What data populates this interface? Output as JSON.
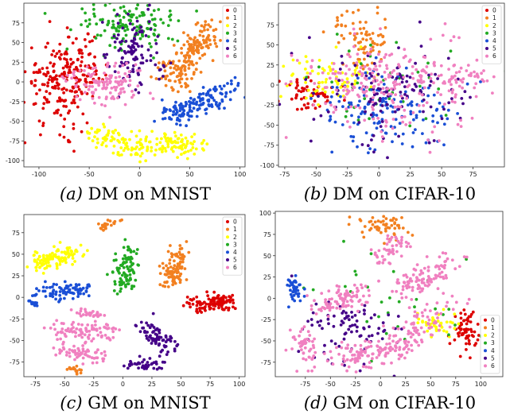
{
  "class_colors": [
    "#dd0000",
    "#f28020",
    "#ffff00",
    "#22aa22",
    "#1a4fd6",
    "#440088",
    "#f080c0"
  ],
  "chart_data": [
    {
      "type": "scatter",
      "caption_label": "(a)",
      "caption_text": "DM on MNIST",
      "xlim": [
        -115,
        105
      ],
      "ylim": [
        -108,
        100
      ],
      "xticks": [
        -100,
        -50,
        0,
        50,
        100
      ],
      "yticks": [
        -100,
        -75,
        -50,
        -25,
        0,
        25,
        50,
        75
      ],
      "legend": {
        "position": "top-right",
        "labels": [
          "0",
          "1",
          "2",
          "3",
          "4",
          "5",
          "6"
        ]
      },
      "grid": false,
      "clusters": [
        {
          "cls": 0,
          "x": -80,
          "y": 0,
          "sx": 17,
          "sy": 28,
          "n": 170
        },
        {
          "cls": 0,
          "x": -55,
          "y": 10,
          "sx": 10,
          "sy": 20,
          "n": 60
        },
        {
          "cls": 1,
          "x": 30,
          "y": 0,
          "x2": 70,
          "y2": 65,
          "spread": 9,
          "n": 190
        },
        {
          "cls": 2,
          "x": -10,
          "y": -80,
          "x2": 60,
          "y2": -80,
          "spread": 9,
          "n": 120
        },
        {
          "cls": 2,
          "x": -50,
          "y": -60,
          "x2": -10,
          "y2": -80,
          "spread": 8,
          "n": 60
        },
        {
          "cls": 3,
          "x": -10,
          "y": 75,
          "sx": 25,
          "sy": 14,
          "n": 140
        },
        {
          "cls": 4,
          "x": 30,
          "y": -45,
          "x2": 95,
          "y2": -5,
          "spread": 8,
          "n": 150
        },
        {
          "cls": 5,
          "x": -5,
          "y": 35,
          "sx": 14,
          "sy": 24,
          "n": 110
        },
        {
          "cls": 6,
          "x": -35,
          "y": 0,
          "sx": 20,
          "sy": 14,
          "n": 120
        }
      ]
    },
    {
      "type": "scatter",
      "caption_label": "(b)",
      "caption_text": "DM on CIFAR-10",
      "xlim": [
        -80,
        100
      ],
      "ylim": [
        -102,
        102
      ],
      "xticks": [
        -75,
        -50,
        -25,
        0,
        25,
        50,
        75
      ],
      "yticks": [
        -100,
        -75,
        -50,
        -25,
        0,
        25,
        50,
        75
      ],
      "legend": {
        "position": "top-right",
        "labels": [
          "0",
          "1",
          "2",
          "3",
          "4",
          "5",
          "6"
        ]
      },
      "grid": false,
      "clusters": [
        {
          "cls": 0,
          "x": -55,
          "y": -10,
          "sx": 10,
          "sy": 12,
          "n": 60
        },
        {
          "cls": 1,
          "x": -15,
          "y": 60,
          "sx": 12,
          "sy": 20,
          "n": 80
        },
        {
          "cls": 2,
          "x": -40,
          "y": 10,
          "sx": 18,
          "sy": 15,
          "n": 70
        },
        {
          "cls": 3,
          "x": 0,
          "y": 0,
          "sx": 30,
          "sy": 30,
          "n": 40
        },
        {
          "cls": 4,
          "x": 10,
          "y": -35,
          "sx": 26,
          "sy": 25,
          "n": 150
        },
        {
          "cls": 5,
          "x": 5,
          "y": -10,
          "sx": 30,
          "sy": 28,
          "n": 120
        },
        {
          "cls": 6,
          "x": 5,
          "y": 0,
          "sx": 35,
          "sy": 30,
          "n": 230
        },
        {
          "cls": 6,
          "x": 60,
          "y": 10,
          "sx": 15,
          "sy": 8,
          "n": 50
        }
      ]
    },
    {
      "type": "scatter",
      "caption_label": "(c)",
      "caption_text": "GM on MNIST",
      "xlim": [
        -85,
        105
      ],
      "ylim": [
        -92,
        96
      ],
      "xticks": [
        -75,
        -50,
        -25,
        0,
        25,
        50,
        75,
        100
      ],
      "yticks": [
        -75,
        -50,
        -25,
        0,
        25,
        50,
        75
      ],
      "legend": {
        "position": "top-right",
        "labels": [
          "0",
          "1",
          "2",
          "3",
          "4",
          "5",
          "6"
        ]
      },
      "grid": false,
      "clusters": [
        {
          "cls": 0,
          "x": 60,
          "y": -10,
          "x2": 92,
          "y2": -5,
          "spread": 5,
          "n": 110
        },
        {
          "cls": 1,
          "x": 40,
          "y": 15,
          "x2": 50,
          "y2": 55,
          "spread": 5,
          "n": 100
        },
        {
          "cls": 1,
          "x": -20,
          "y": 80,
          "x2": -5,
          "y2": 90,
          "spread": 2,
          "n": 25
        },
        {
          "cls": 1,
          "x": -45,
          "y": -83,
          "x2": -35,
          "y2": -85,
          "spread": 2,
          "n": 15
        },
        {
          "cls": 2,
          "x": -75,
          "y": 38,
          "x2": -40,
          "y2": 55,
          "spread": 6,
          "n": 110
        },
        {
          "cls": 3,
          "x": 0,
          "y": 10,
          "x2": 5,
          "y2": 55,
          "spread": 5,
          "n": 90
        },
        {
          "cls": 4,
          "x": -75,
          "y": 5,
          "x2": -30,
          "y2": 10,
          "spread": 5,
          "n": 80
        },
        {
          "cls": 4,
          "x": -80,
          "y": -5,
          "x2": -75,
          "y2": -10,
          "spread": 2,
          "n": 15
        },
        {
          "cls": 5,
          "x": 20,
          "y": -30,
          "x2": 40,
          "y2": -60,
          "spread": 5,
          "n": 70
        },
        {
          "cls": 5,
          "x": 5,
          "y": -80,
          "x2": 30,
          "y2": -75,
          "spread": 4,
          "n": 40
        },
        {
          "cls": 6,
          "x": -60,
          "y": -40,
          "x2": -10,
          "y2": -40,
          "spread": 6,
          "n": 90
        },
        {
          "cls": 6,
          "x": -55,
          "y": -60,
          "x2": -20,
          "y2": -70,
          "spread": 5,
          "n": 60
        },
        {
          "cls": 6,
          "x": -40,
          "y": -18,
          "x2": -20,
          "y2": -20,
          "spread": 3,
          "n": 30
        }
      ]
    },
    {
      "type": "scatter",
      "caption_label": "(d)",
      "caption_text": "GM on CIFAR-10",
      "xlim": [
        -105,
        122
      ],
      "ylim": [
        -92,
        102
      ],
      "xticks": [
        -75,
        -50,
        -25,
        0,
        25,
        50,
        75,
        100
      ],
      "yticks": [
        -75,
        -50,
        -25,
        0,
        25,
        50,
        75,
        100
      ],
      "legend": {
        "position": "lower-right",
        "labels": [
          "0",
          "1",
          "2",
          "3",
          "4",
          "5",
          "6"
        ]
      },
      "grid": false,
      "clusters": [
        {
          "cls": 0,
          "x": 85,
          "y": -40,
          "sx": 6,
          "sy": 12,
          "n": 60
        },
        {
          "cls": 1,
          "x": 0,
          "y": 85,
          "sx": 12,
          "sy": 8,
          "n": 60
        },
        {
          "cls": 2,
          "x": 55,
          "y": -30,
          "sx": 10,
          "sy": 8,
          "n": 40
        },
        {
          "cls": 3,
          "x": 10,
          "y": -10,
          "sx": 40,
          "sy": 30,
          "n": 30
        },
        {
          "cls": 4,
          "x": -85,
          "y": 10,
          "sx": 4,
          "sy": 8,
          "n": 40
        },
        {
          "cls": 5,
          "x": -30,
          "y": -40,
          "sx": 25,
          "sy": 20,
          "n": 90
        },
        {
          "cls": 6,
          "x": 20,
          "y": 10,
          "x2": 70,
          "y2": 40,
          "spread": 8,
          "n": 100
        },
        {
          "cls": 6,
          "x": -65,
          "y": -10,
          "x2": -20,
          "y2": 5,
          "spread": 8,
          "n": 90
        },
        {
          "cls": 6,
          "x": -40,
          "y": -70,
          "x2": 20,
          "y2": -60,
          "spread": 10,
          "n": 110
        },
        {
          "cls": 6,
          "x": 20,
          "y": -55,
          "x2": 60,
          "y2": -10,
          "spread": 10,
          "n": 90
        },
        {
          "cls": 6,
          "x": 0,
          "y": 40,
          "x2": 20,
          "y2": 70,
          "spread": 6,
          "n": 50
        },
        {
          "cls": 6,
          "x": -80,
          "y": -40,
          "x2": -70,
          "y2": -80,
          "spread": 6,
          "n": 50
        }
      ]
    }
  ]
}
